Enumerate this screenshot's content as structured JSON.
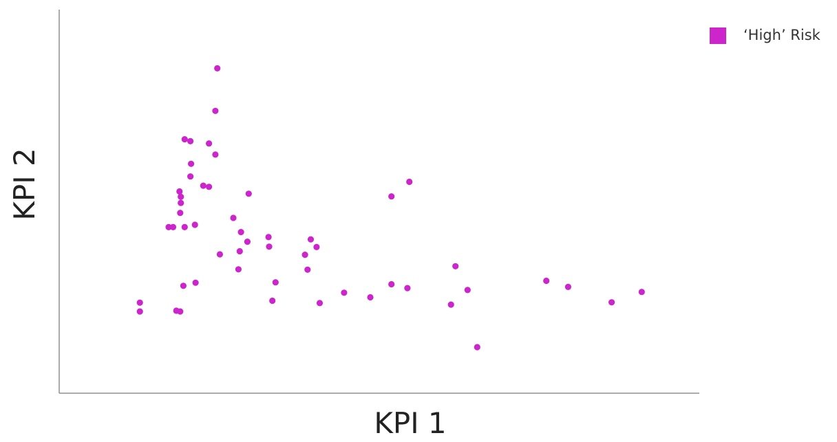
{
  "chart_data": {
    "type": "scatter",
    "title": "",
    "xlabel": "KPI 1",
    "ylabel": "KPI 2",
    "grid": false,
    "xlim": [
      0,
      100
    ],
    "ylim": [
      0,
      100
    ],
    "legend": {
      "placement": "top-right",
      "entries": [
        {
          "label": "‘High’ Risk",
          "color": "#cc25cc"
        }
      ]
    },
    "series": [
      {
        "name": "‘High’ Risk",
        "color": "#cc25cc",
        "points": [
          {
            "x": 12.6,
            "y": 23.6
          },
          {
            "x": 12.6,
            "y": 21.3
          },
          {
            "x": 18.3,
            "y": 21.5
          },
          {
            "x": 18.9,
            "y": 21.3
          },
          {
            "x": 19.4,
            "y": 28.0
          },
          {
            "x": 21.3,
            "y": 28.8
          },
          {
            "x": 17.1,
            "y": 43.3
          },
          {
            "x": 17.8,
            "y": 43.3
          },
          {
            "x": 19.6,
            "y": 43.3
          },
          {
            "x": 21.2,
            "y": 43.9
          },
          {
            "x": 18.9,
            "y": 47.0
          },
          {
            "x": 19.0,
            "y": 49.6
          },
          {
            "x": 19.0,
            "y": 51.2
          },
          {
            "x": 18.8,
            "y": 52.6
          },
          {
            "x": 20.5,
            "y": 56.5
          },
          {
            "x": 20.6,
            "y": 59.8
          },
          {
            "x": 22.5,
            "y": 54.1
          },
          {
            "x": 23.4,
            "y": 53.8
          },
          {
            "x": 19.6,
            "y": 66.2
          },
          {
            "x": 20.5,
            "y": 65.7
          },
          {
            "x": 23.4,
            "y": 65.1
          },
          {
            "x": 24.4,
            "y": 62.2
          },
          {
            "x": 24.4,
            "y": 73.6
          },
          {
            "x": 24.7,
            "y": 84.7
          },
          {
            "x": 25.1,
            "y": 36.2
          },
          {
            "x": 27.2,
            "y": 45.7
          },
          {
            "x": 28.4,
            "y": 42.0
          },
          {
            "x": 28.2,
            "y": 37.0
          },
          {
            "x": 28.0,
            "y": 32.3
          },
          {
            "x": 29.6,
            "y": 52.0
          },
          {
            "x": 29.4,
            "y": 39.5
          },
          {
            "x": 32.7,
            "y": 40.7
          },
          {
            "x": 32.8,
            "y": 38.2
          },
          {
            "x": 33.8,
            "y": 28.9
          },
          {
            "x": 33.3,
            "y": 24.1
          },
          {
            "x": 38.4,
            "y": 36.1
          },
          {
            "x": 38.8,
            "y": 32.2
          },
          {
            "x": 39.3,
            "y": 40.1
          },
          {
            "x": 40.2,
            "y": 38.1
          },
          {
            "x": 40.7,
            "y": 23.5
          },
          {
            "x": 44.5,
            "y": 26.2
          },
          {
            "x": 48.6,
            "y": 25.0
          },
          {
            "x": 51.9,
            "y": 51.3
          },
          {
            "x": 51.9,
            "y": 28.4
          },
          {
            "x": 54.4,
            "y": 27.4
          },
          {
            "x": 54.7,
            "y": 55.1
          },
          {
            "x": 61.2,
            "y": 23.1
          },
          {
            "x": 61.9,
            "y": 33.1
          },
          {
            "x": 63.8,
            "y": 26.9
          },
          {
            "x": 65.3,
            "y": 12.0
          },
          {
            "x": 76.1,
            "y": 29.3
          },
          {
            "x": 79.5,
            "y": 27.7
          },
          {
            "x": 86.3,
            "y": 23.7
          },
          {
            "x": 91.0,
            "y": 26.4
          }
        ]
      }
    ]
  }
}
